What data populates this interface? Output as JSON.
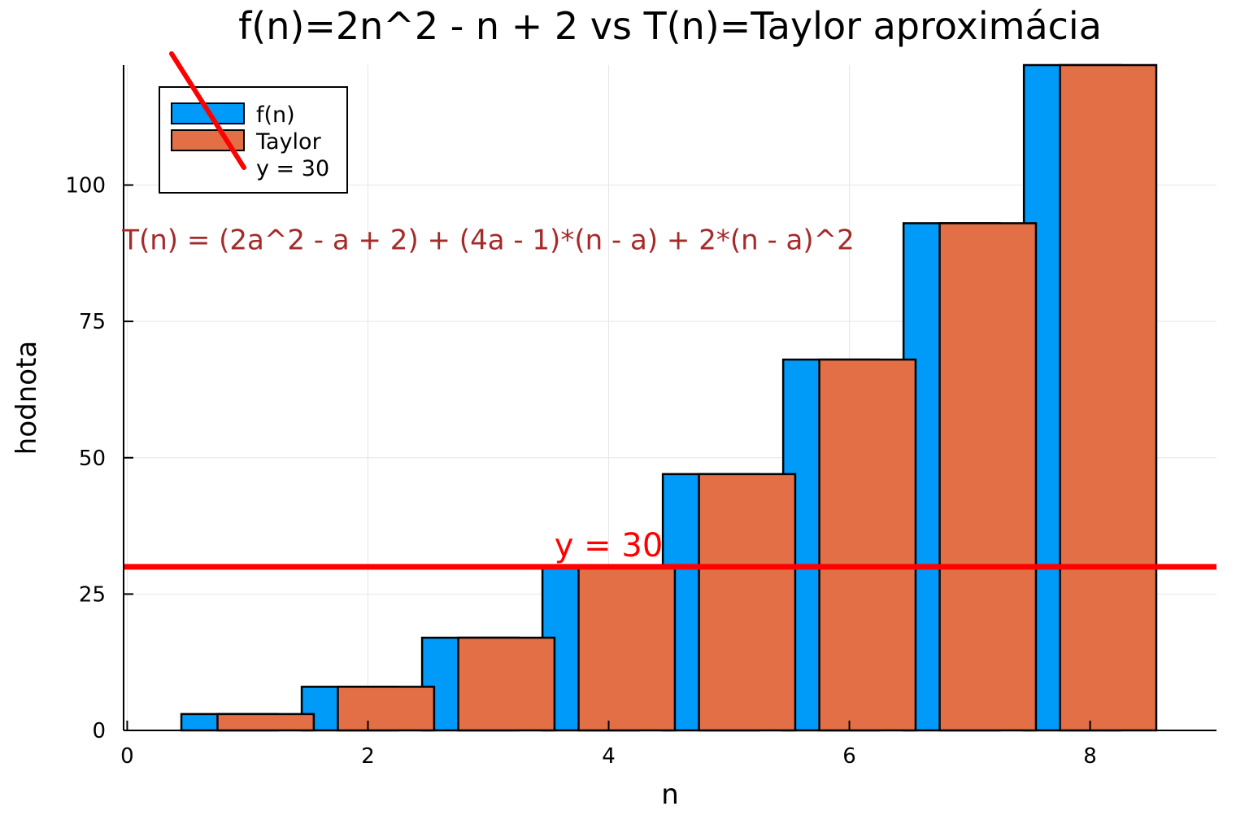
{
  "chart_data": {
    "type": "bar",
    "title": "f(n)=2n^2 - n + 2 vs T(n)=Taylor aproximácia",
    "xlabel": "n",
    "ylabel": "hodnota",
    "xlim": [
      -0.03,
      9.05
    ],
    "ylim": [
      0,
      122
    ],
    "xticks": [
      0,
      2,
      4,
      6,
      8
    ],
    "yticks": [
      0,
      25,
      50,
      75,
      100
    ],
    "grid": true,
    "legend_position": "top-left",
    "x": [
      1,
      2,
      3,
      4,
      5,
      6,
      7,
      8
    ],
    "series": [
      {
        "name": "f(n)",
        "type": "bar",
        "color": "#009af9",
        "values": [
          3,
          8,
          17,
          30,
          47,
          68,
          93,
          122
        ]
      },
      {
        "name": "Taylor",
        "type": "bar",
        "color": "#e26f46",
        "values": [
          3,
          8,
          17,
          30,
          47,
          68,
          93,
          122
        ]
      },
      {
        "name": "y = 30",
        "type": "hline",
        "color": "#ff0000",
        "value": 30
      }
    ],
    "annotations": [
      {
        "text": "T(n) = (2a^2 - a + 2) + (4a - 1)*(n - a) + 2*(n - a)^2",
        "x": 3.0,
        "y": 90,
        "color": "#a52a2a"
      },
      {
        "text": "y = 30",
        "x": 4.0,
        "y": 34,
        "color": "#ff0000"
      }
    ]
  }
}
